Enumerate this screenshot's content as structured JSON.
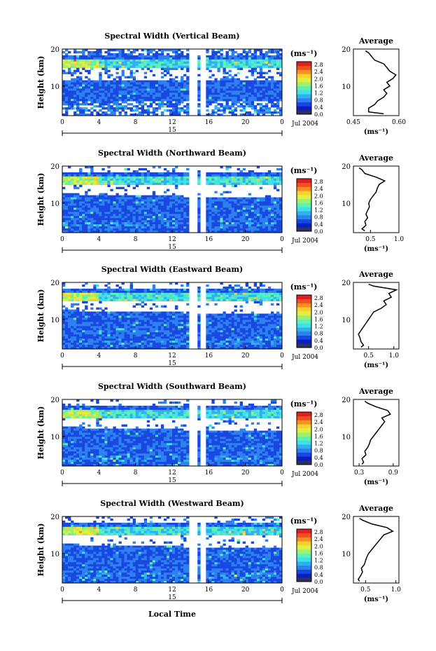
{
  "colorbar": {
    "unit": "(ms⁻¹)",
    "ticks": [
      "2.8",
      "2.4",
      "2.0",
      "1.6",
      "1.2",
      "0.8",
      "0.4",
      "0.0"
    ],
    "colors": [
      "#303060",
      "#0820c0",
      "#1848e0",
      "#2c80f0",
      "#30b0f0",
      "#40e0e8",
      "#60f0b0",
      "#a0f070",
      "#e0f040",
      "#f8d030",
      "#f89020",
      "#f05020",
      "#e02020"
    ]
  },
  "x_axis": {
    "ticks": [
      "0",
      "4",
      "8",
      "12",
      "16",
      "20",
      "0"
    ],
    "date_day": "15",
    "date_label": "Jul 2004",
    "xlabel": "Local Time"
  },
  "y_axis": {
    "ylabel": "Height (km)",
    "ticks": [
      "20",
      "10"
    ]
  },
  "chart_data": [
    {
      "type": "heatmap",
      "title": "Spectral Width (Vertical Beam)",
      "ylabel": "Height (km)",
      "xlim": [
        0,
        24
      ],
      "ylim": [
        2,
        20
      ],
      "avg": {
        "title": "Average",
        "xticks": [
          "0.45",
          "0.60"
        ],
        "xlim": [
          0.45,
          0.6
        ],
        "xlabel": "(ms⁻¹)",
        "height": [
          2.5,
          3,
          4,
          5,
          6,
          7,
          8,
          9,
          10,
          11,
          12,
          13,
          14,
          15,
          16,
          17,
          18,
          19,
          19.5
        ],
        "values": [
          0.55,
          0.5,
          0.5,
          0.52,
          0.53,
          0.55,
          0.56,
          0.55,
          0.57,
          0.56,
          0.58,
          0.59,
          0.57,
          0.56,
          0.55,
          0.52,
          0.51,
          0.5,
          0.49
        ]
      }
    },
    {
      "type": "heatmap",
      "title": "Spectral Width (Northward Beam)",
      "ylabel": "Height (km)",
      "xlim": [
        0,
        24
      ],
      "ylim": [
        2,
        20
      ],
      "avg": {
        "title": "Average",
        "xticks": [
          "0.5",
          "1.0"
        ],
        "xlim": [
          0.2,
          1.0
        ],
        "xlabel": "(ms⁻¹)",
        "height": [
          2.5,
          3,
          4,
          5,
          6,
          7,
          8,
          9,
          10,
          11,
          12,
          13,
          14,
          15,
          16,
          17,
          18,
          19,
          19.5
        ],
        "values": [
          0.4,
          0.35,
          0.42,
          0.4,
          0.45,
          0.42,
          0.45,
          0.48,
          0.47,
          0.5,
          0.55,
          0.6,
          0.62,
          0.65,
          0.75,
          0.6,
          0.4,
          0.35,
          0.3
        ]
      }
    },
    {
      "type": "heatmap",
      "title": "Spectral Width (Eastward Beam)",
      "ylabel": "Height (km)",
      "xlim": [
        0,
        24
      ],
      "ylim": [
        2,
        20
      ],
      "avg": {
        "title": "Average",
        "xticks": [
          "0.5",
          "1.0"
        ],
        "xlim": [
          0.2,
          1.1
        ],
        "xlabel": "(ms⁻¹)",
        "height": [
          2.5,
          3,
          4,
          5,
          6,
          7,
          8,
          9,
          10,
          11,
          12,
          13,
          14,
          15,
          16,
          17,
          18,
          19,
          19.5
        ],
        "values": [
          0.35,
          0.4,
          0.35,
          0.33,
          0.3,
          0.35,
          0.4,
          0.45,
          0.5,
          0.55,
          0.6,
          0.75,
          0.85,
          0.8,
          0.95,
          0.9,
          1.05,
          0.6,
          0.5
        ]
      }
    },
    {
      "type": "heatmap",
      "title": "Spectral Width (Southward Beam)",
      "ylabel": "Height (km)",
      "xlim": [
        0,
        24
      ],
      "ylim": [
        2,
        20
      ],
      "avg": {
        "title": "Average",
        "xticks": [
          "0.3",
          "0.9"
        ],
        "xlim": [
          0.2,
          1.0
        ],
        "xlabel": "(ms⁻¹)",
        "height": [
          2.5,
          3,
          4,
          5,
          6,
          7,
          8,
          9,
          10,
          11,
          12,
          13,
          14,
          15,
          16,
          17,
          18,
          19,
          19.5
        ],
        "values": [
          0.35,
          0.38,
          0.35,
          0.42,
          0.4,
          0.45,
          0.48,
          0.5,
          0.55,
          0.6,
          0.65,
          0.7,
          0.75,
          0.7,
          0.85,
          0.8,
          0.6,
          0.45,
          0.4
        ]
      }
    },
    {
      "type": "heatmap",
      "title": "Spectral Width (Westward Beam)",
      "ylabel": "Height (km)",
      "xlim": [
        0,
        24
      ],
      "ylim": [
        2,
        20
      ],
      "avg": {
        "title": "Average",
        "xticks": [
          "0.5",
          "1.0"
        ],
        "xlim": [
          0.3,
          1.05
        ],
        "xlabel": "(ms⁻¹)",
        "height": [
          2.5,
          3,
          4,
          5,
          6,
          7,
          8,
          9,
          10,
          11,
          12,
          13,
          14,
          15,
          16,
          17,
          18,
          19,
          19.5
        ],
        "values": [
          0.4,
          0.38,
          0.42,
          0.45,
          0.43,
          0.48,
          0.5,
          0.52,
          0.55,
          0.6,
          0.65,
          0.7,
          0.75,
          0.8,
          0.95,
          0.85,
          0.6,
          0.45,
          0.4
        ]
      }
    }
  ]
}
